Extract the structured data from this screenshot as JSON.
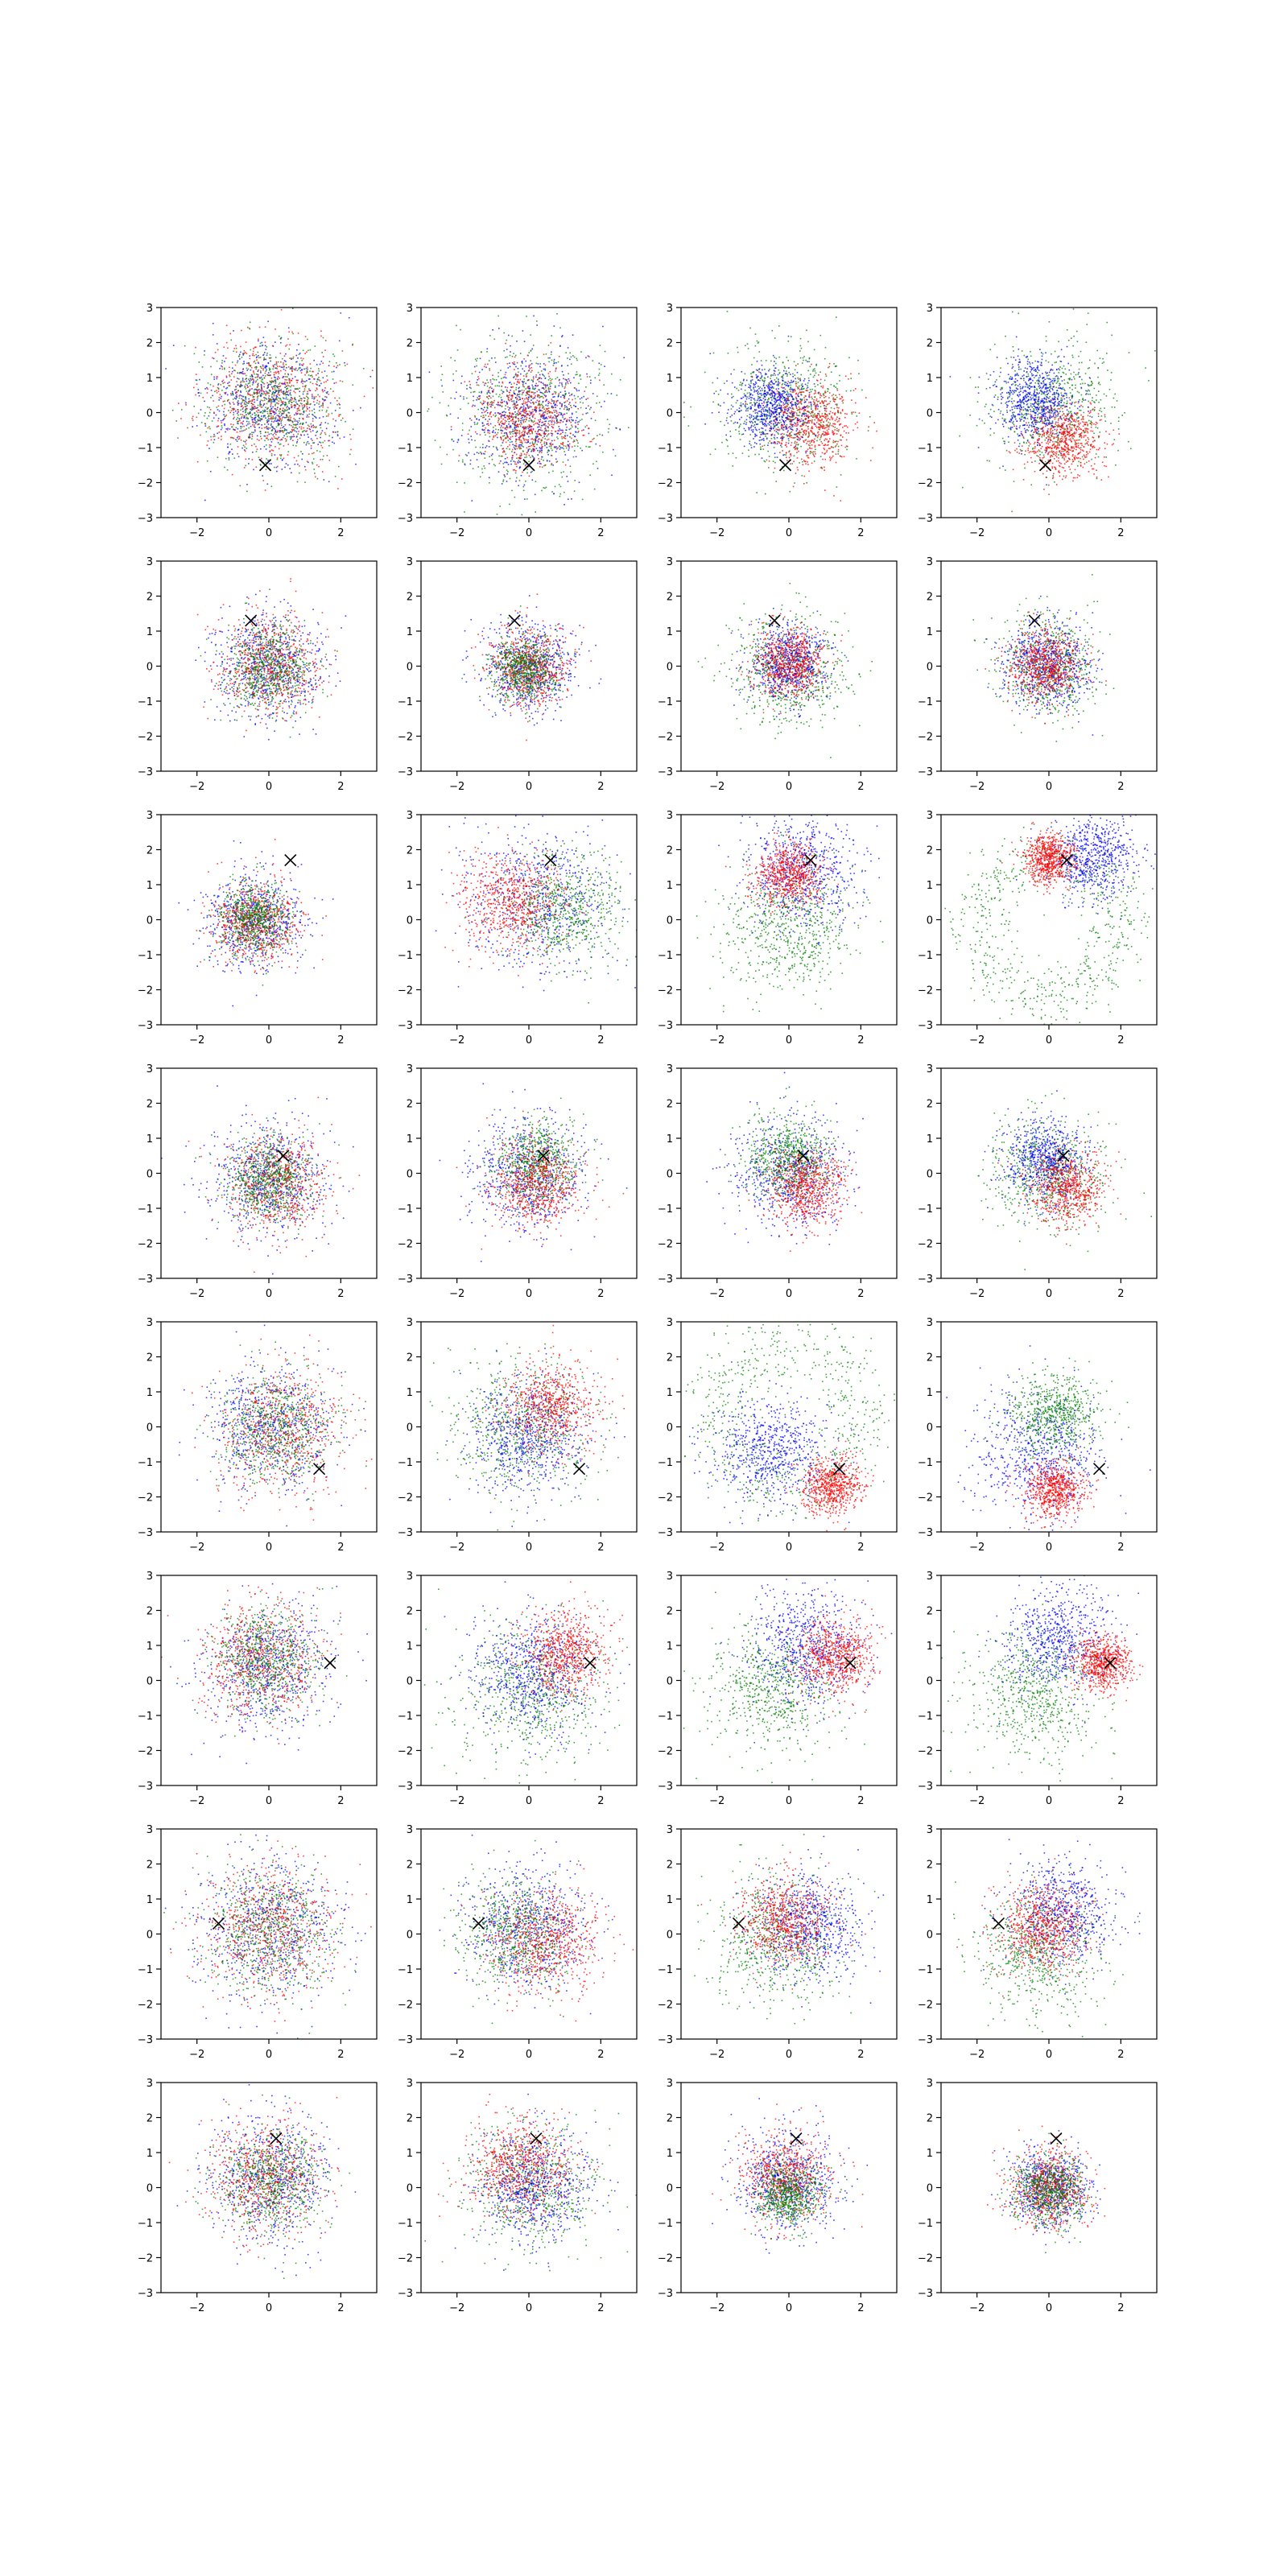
{
  "figure": {
    "rows": 8,
    "cols": 4
  },
  "colors": {
    "blue": "#0000ff",
    "red": "#ff0000",
    "green": "#008000",
    "marker": "#000000"
  },
  "chart_data": {
    "type": "scatter",
    "xlim": [
      -3,
      3
    ],
    "ylim": [
      -3,
      3
    ],
    "xticks": [
      -2,
      0,
      2
    ],
    "yticks": [
      -3,
      -2,
      -1,
      0,
      1,
      2,
      3
    ],
    "xtick_labels": [
      "−2",
      "0",
      "2"
    ],
    "ytick_labels": [
      "−3",
      "−2",
      "−1",
      "0",
      "1",
      "2",
      "3"
    ],
    "grid": false,
    "legend": "none",
    "marker_symbol": "x",
    "panels": [
      {
        "row": 0,
        "col": 0,
        "marker": [
          -0.1,
          -1.5
        ],
        "series": [
          {
            "color": "blue",
            "cx": 0,
            "cy": 0.2,
            "sd": 0.9
          },
          {
            "color": "red",
            "cx": 0.1,
            "cy": 0.4,
            "sd": 0.9
          },
          {
            "color": "green",
            "cx": 0.1,
            "cy": 0.3,
            "sd": 0.9
          }
        ]
      },
      {
        "row": 0,
        "col": 1,
        "marker": [
          0,
          -1.5
        ],
        "series": [
          {
            "color": "green",
            "cx": 0,
            "cy": -0.1,
            "sd": 1.1
          },
          {
            "color": "blue",
            "cx": 0,
            "cy": -0.1,
            "sd": 0.9
          },
          {
            "color": "red",
            "cx": 0,
            "cy": -0.1,
            "sd": 0.7
          }
        ]
      },
      {
        "row": 0,
        "col": 2,
        "marker": [
          -0.1,
          -1.5
        ],
        "series": [
          {
            "color": "green",
            "cx": -0.1,
            "cy": 0.2,
            "sd": 0.9
          },
          {
            "color": "red",
            "cx": 0.6,
            "cy": -0.3,
            "sd": 0.6
          },
          {
            "color": "blue",
            "cx": -0.5,
            "cy": 0.2,
            "sd": 0.55
          }
        ]
      },
      {
        "row": 0,
        "col": 3,
        "marker": [
          -0.1,
          -1.5
        ],
        "series": [
          {
            "color": "green",
            "cx": 0,
            "cy": 0.2,
            "sd": 0.9
          },
          {
            "color": "red",
            "cx": 0.4,
            "cy": -0.8,
            "sd": 0.5
          },
          {
            "color": "blue",
            "cx": -0.4,
            "cy": 0.4,
            "sd": 0.55
          }
        ]
      },
      {
        "row": 1,
        "col": 0,
        "marker": [
          -0.5,
          1.3
        ],
        "series": [
          {
            "color": "blue",
            "cx": 0,
            "cy": 0,
            "sd": 0.75
          },
          {
            "color": "red",
            "cx": 0,
            "cy": 0.1,
            "sd": 0.7
          },
          {
            "color": "green",
            "cx": 0,
            "cy": -0.1,
            "sd": 0.6
          }
        ]
      },
      {
        "row": 1,
        "col": 1,
        "marker": [
          -0.4,
          1.3
        ],
        "series": [
          {
            "color": "blue",
            "cx": 0,
            "cy": 0,
            "sd": 0.65
          },
          {
            "color": "red",
            "cx": 0,
            "cy": 0,
            "sd": 0.55
          },
          {
            "color": "green",
            "cx": -0.1,
            "cy": -0.1,
            "sd": 0.45
          }
        ]
      },
      {
        "row": 1,
        "col": 2,
        "marker": [
          -0.4,
          1.3
        ],
        "series": [
          {
            "color": "green",
            "cx": 0,
            "cy": -0.1,
            "sd": 0.8
          },
          {
            "color": "blue",
            "cx": 0,
            "cy": 0.1,
            "sd": 0.55
          },
          {
            "color": "red",
            "cx": 0,
            "cy": 0.1,
            "sd": 0.5
          }
        ]
      },
      {
        "row": 1,
        "col": 3,
        "marker": [
          -0.4,
          1.3
        ],
        "series": [
          {
            "color": "green",
            "cx": 0,
            "cy": 0,
            "sd": 0.7
          },
          {
            "color": "blue",
            "cx": 0,
            "cy": 0,
            "sd": 0.6
          },
          {
            "color": "red",
            "cx": -0.1,
            "cy": 0,
            "sd": 0.5
          }
        ]
      },
      {
        "row": 2,
        "col": 0,
        "marker": [
          0.6,
          1.7
        ],
        "series": [
          {
            "color": "blue",
            "cx": -0.4,
            "cy": 0,
            "sd": 0.7
          },
          {
            "color": "red",
            "cx": -0.4,
            "cy": 0,
            "sd": 0.6
          },
          {
            "color": "green",
            "cx": -0.4,
            "cy": 0,
            "sd": 0.5
          }
        ]
      },
      {
        "row": 2,
        "col": 1,
        "marker": [
          0.6,
          1.7
        ],
        "series": [
          {
            "color": "blue",
            "cx": 0.2,
            "cy": 0.6,
            "sd": 1.0
          },
          {
            "color": "green",
            "cx": 1.0,
            "cy": 0.3,
            "sd": 0.8
          },
          {
            "color": "red",
            "cx": -0.5,
            "cy": 0.5,
            "sd": 0.7
          }
        ]
      },
      {
        "row": 2,
        "col": 2,
        "marker": [
          0.6,
          1.7
        ],
        "series": [
          {
            "color": "green",
            "cx": 0,
            "cy": -0.2,
            "sd": 0.9
          },
          {
            "color": "blue",
            "cx": 0.4,
            "cy": 1.4,
            "sd": 0.8
          },
          {
            "color": "red",
            "cx": 0,
            "cy": 1.3,
            "sd": 0.45
          }
        ]
      },
      {
        "row": 2,
        "col": 3,
        "marker": [
          0.5,
          1.7
        ],
        "series": [
          {
            "color": "green",
            "shape": "ring",
            "cx": 0,
            "cy": -0.2,
            "r": 2.0,
            "sd": 0.45
          },
          {
            "color": "blue",
            "cx": 1.2,
            "cy": 1.8,
            "sd": 0.6
          },
          {
            "color": "red",
            "cx": 0,
            "cy": 1.7,
            "sd": 0.35
          }
        ]
      },
      {
        "row": 3,
        "col": 0,
        "marker": [
          0.4,
          0.5
        ],
        "series": [
          {
            "color": "blue",
            "cx": 0,
            "cy": -0.1,
            "sd": 0.8
          },
          {
            "color": "red",
            "cx": 0.2,
            "cy": -0.3,
            "sd": 0.7
          },
          {
            "color": "green",
            "cx": 0,
            "cy": -0.2,
            "sd": 0.6
          }
        ]
      },
      {
        "row": 3,
        "col": 1,
        "marker": [
          0.4,
          0.5
        ],
        "series": [
          {
            "color": "blue",
            "cx": 0,
            "cy": 0,
            "sd": 0.8
          },
          {
            "color": "green",
            "cx": 0.2,
            "cy": 0.3,
            "sd": 0.6
          },
          {
            "color": "red",
            "cx": 0.2,
            "cy": -0.3,
            "sd": 0.6
          }
        ]
      },
      {
        "row": 3,
        "col": 2,
        "marker": [
          0.4,
          0.5
        ],
        "series": [
          {
            "color": "blue",
            "cx": 0,
            "cy": 0,
            "sd": 0.8
          },
          {
            "color": "green",
            "cx": 0,
            "cy": 0.4,
            "sd": 0.6
          },
          {
            "color": "red",
            "cx": 0.5,
            "cy": -0.4,
            "sd": 0.55
          }
        ]
      },
      {
        "row": 3,
        "col": 3,
        "marker": [
          0.4,
          0.5
        ],
        "series": [
          {
            "color": "green",
            "cx": 0,
            "cy": 0,
            "sd": 0.8
          },
          {
            "color": "blue",
            "cx": -0.1,
            "cy": 0.4,
            "sd": 0.55
          },
          {
            "color": "red",
            "cx": 0.5,
            "cy": -0.4,
            "sd": 0.5
          }
        ]
      },
      {
        "row": 4,
        "col": 0,
        "marker": [
          1.4,
          -1.2
        ],
        "series": [
          {
            "color": "blue",
            "cx": 0.1,
            "cy": 0,
            "sd": 0.9
          },
          {
            "color": "red",
            "cx": 0.3,
            "cy": 0,
            "sd": 0.85
          },
          {
            "color": "green",
            "cx": 0.2,
            "cy": 0,
            "sd": 0.8
          }
        ]
      },
      {
        "row": 4,
        "col": 1,
        "marker": [
          1.4,
          -1.2
        ],
        "series": [
          {
            "color": "green",
            "cx": -0.2,
            "cy": 0,
            "sd": 1.0
          },
          {
            "color": "blue",
            "cx": 0,
            "cy": -0.3,
            "sd": 0.85
          },
          {
            "color": "red",
            "cx": 0.6,
            "cy": 0.6,
            "sd": 0.65
          }
        ]
      },
      {
        "row": 4,
        "col": 2,
        "marker": [
          1.4,
          -1.2
        ],
        "series": [
          {
            "color": "green",
            "shape": "ring",
            "cx": 0,
            "cy": 0.3,
            "r": 2.0,
            "sd": 0.55
          },
          {
            "color": "blue",
            "cx": -0.5,
            "cy": -0.7,
            "sd": 0.8
          },
          {
            "color": "red",
            "cx": 1.2,
            "cy": -1.7,
            "sd": 0.4
          }
        ]
      },
      {
        "row": 4,
        "col": 3,
        "marker": [
          1.4,
          -1.2
        ],
        "series": [
          {
            "color": "blue",
            "cx": -0.3,
            "cy": -0.8,
            "sd": 0.9
          },
          {
            "color": "green",
            "cx": 0.2,
            "cy": 0.4,
            "sd": 0.6
          },
          {
            "color": "red",
            "cx": 0.2,
            "cy": -1.8,
            "sd": 0.4
          }
        ]
      },
      {
        "row": 5,
        "col": 0,
        "marker": [
          1.7,
          0.5
        ],
        "series": [
          {
            "color": "blue",
            "cx": 0,
            "cy": 0.4,
            "sd": 0.9
          },
          {
            "color": "red",
            "cx": -0.2,
            "cy": 0.6,
            "sd": 0.8
          },
          {
            "color": "green",
            "cx": -0.1,
            "cy": 0.6,
            "sd": 0.75
          }
        ]
      },
      {
        "row": 5,
        "col": 1,
        "marker": [
          1.7,
          0.5
        ],
        "series": [
          {
            "color": "green",
            "cx": 0,
            "cy": -0.3,
            "sd": 1.0
          },
          {
            "color": "blue",
            "cx": 0.1,
            "cy": 0.2,
            "sd": 0.85
          },
          {
            "color": "red",
            "cx": 1.0,
            "cy": 0.8,
            "sd": 0.6
          }
        ]
      },
      {
        "row": 5,
        "col": 2,
        "marker": [
          1.7,
          0.5
        ],
        "series": [
          {
            "color": "green",
            "cx": -0.5,
            "cy": -0.2,
            "sd": 0.9
          },
          {
            "color": "blue",
            "cx": 0.5,
            "cy": 1.0,
            "sd": 0.8
          },
          {
            "color": "red",
            "cx": 1.3,
            "cy": 0.7,
            "sd": 0.5
          }
        ]
      },
      {
        "row": 5,
        "col": 3,
        "marker": [
          1.7,
          0.5
        ],
        "series": [
          {
            "color": "green",
            "cx": -0.4,
            "cy": -0.3,
            "sd": 0.9
          },
          {
            "color": "blue",
            "cx": 0.3,
            "cy": 1.2,
            "sd": 0.75
          },
          {
            "color": "red",
            "cx": 1.5,
            "cy": 0.5,
            "sd": 0.4
          }
        ]
      },
      {
        "row": 6,
        "col": 0,
        "marker": [
          -1.4,
          0.3
        ],
        "series": [
          {
            "color": "blue",
            "cx": 0,
            "cy": 0.1,
            "sd": 1.0
          },
          {
            "color": "red",
            "cx": 0,
            "cy": 0.1,
            "sd": 0.9
          },
          {
            "color": "green",
            "cx": 0,
            "cy": 0.1,
            "sd": 0.9
          }
        ]
      },
      {
        "row": 6,
        "col": 1,
        "marker": [
          -1.4,
          0.3
        ],
        "series": [
          {
            "color": "blue",
            "cx": 0,
            "cy": 0.2,
            "sd": 0.9
          },
          {
            "color": "green",
            "cx": -0.3,
            "cy": 0,
            "sd": 0.8
          },
          {
            "color": "red",
            "cx": 0.5,
            "cy": -0.2,
            "sd": 0.75
          }
        ]
      },
      {
        "row": 6,
        "col": 2,
        "marker": [
          -1.4,
          0.3
        ],
        "series": [
          {
            "color": "green",
            "cx": -0.4,
            "cy": -0.2,
            "sd": 0.9
          },
          {
            "color": "blue",
            "cx": 0.6,
            "cy": 0.2,
            "sd": 0.75
          },
          {
            "color": "red",
            "cx": -0.1,
            "cy": 0.4,
            "sd": 0.65
          }
        ]
      },
      {
        "row": 6,
        "col": 3,
        "marker": [
          -1.4,
          0.3
        ],
        "series": [
          {
            "color": "green",
            "cx": -0.3,
            "cy": -0.5,
            "sd": 0.85
          },
          {
            "color": "blue",
            "cx": 0.4,
            "cy": 0.6,
            "sd": 0.75
          },
          {
            "color": "red",
            "cx": -0.2,
            "cy": 0.1,
            "sd": 0.6
          }
        ]
      },
      {
        "row": 7,
        "col": 0,
        "marker": [
          0.2,
          1.4
        ],
        "series": [
          {
            "color": "blue",
            "cx": 0,
            "cy": 0.2,
            "sd": 0.85
          },
          {
            "color": "red",
            "cx": -0.1,
            "cy": 0.3,
            "sd": 0.8
          },
          {
            "color": "green",
            "cx": 0,
            "cy": 0.2,
            "sd": 0.75
          }
        ]
      },
      {
        "row": 7,
        "col": 1,
        "marker": [
          0.2,
          1.4
        ],
        "series": [
          {
            "color": "green",
            "cx": 0,
            "cy": 0,
            "sd": 0.9
          },
          {
            "color": "blue",
            "cx": 0.2,
            "cy": 0,
            "sd": 0.75
          },
          {
            "color": "red",
            "cx": -0.2,
            "cy": 0.6,
            "sd": 0.7
          }
        ]
      },
      {
        "row": 7,
        "col": 2,
        "marker": [
          0.2,
          1.4
        ],
        "series": [
          {
            "color": "blue",
            "cx": 0,
            "cy": 0.2,
            "sd": 0.7
          },
          {
            "color": "red",
            "cx": -0.1,
            "cy": 0.3,
            "sd": 0.6
          },
          {
            "color": "green",
            "cx": 0,
            "cy": -0.2,
            "sd": 0.45
          }
        ]
      },
      {
        "row": 7,
        "col": 3,
        "marker": [
          0.2,
          1.4
        ],
        "series": [
          {
            "color": "blue",
            "cx": 0,
            "cy": 0,
            "sd": 0.55
          },
          {
            "color": "red",
            "cx": 0,
            "cy": 0,
            "sd": 0.55
          },
          {
            "color": "green",
            "cx": 0,
            "cy": -0.1,
            "sd": 0.5
          }
        ]
      }
    ]
  }
}
